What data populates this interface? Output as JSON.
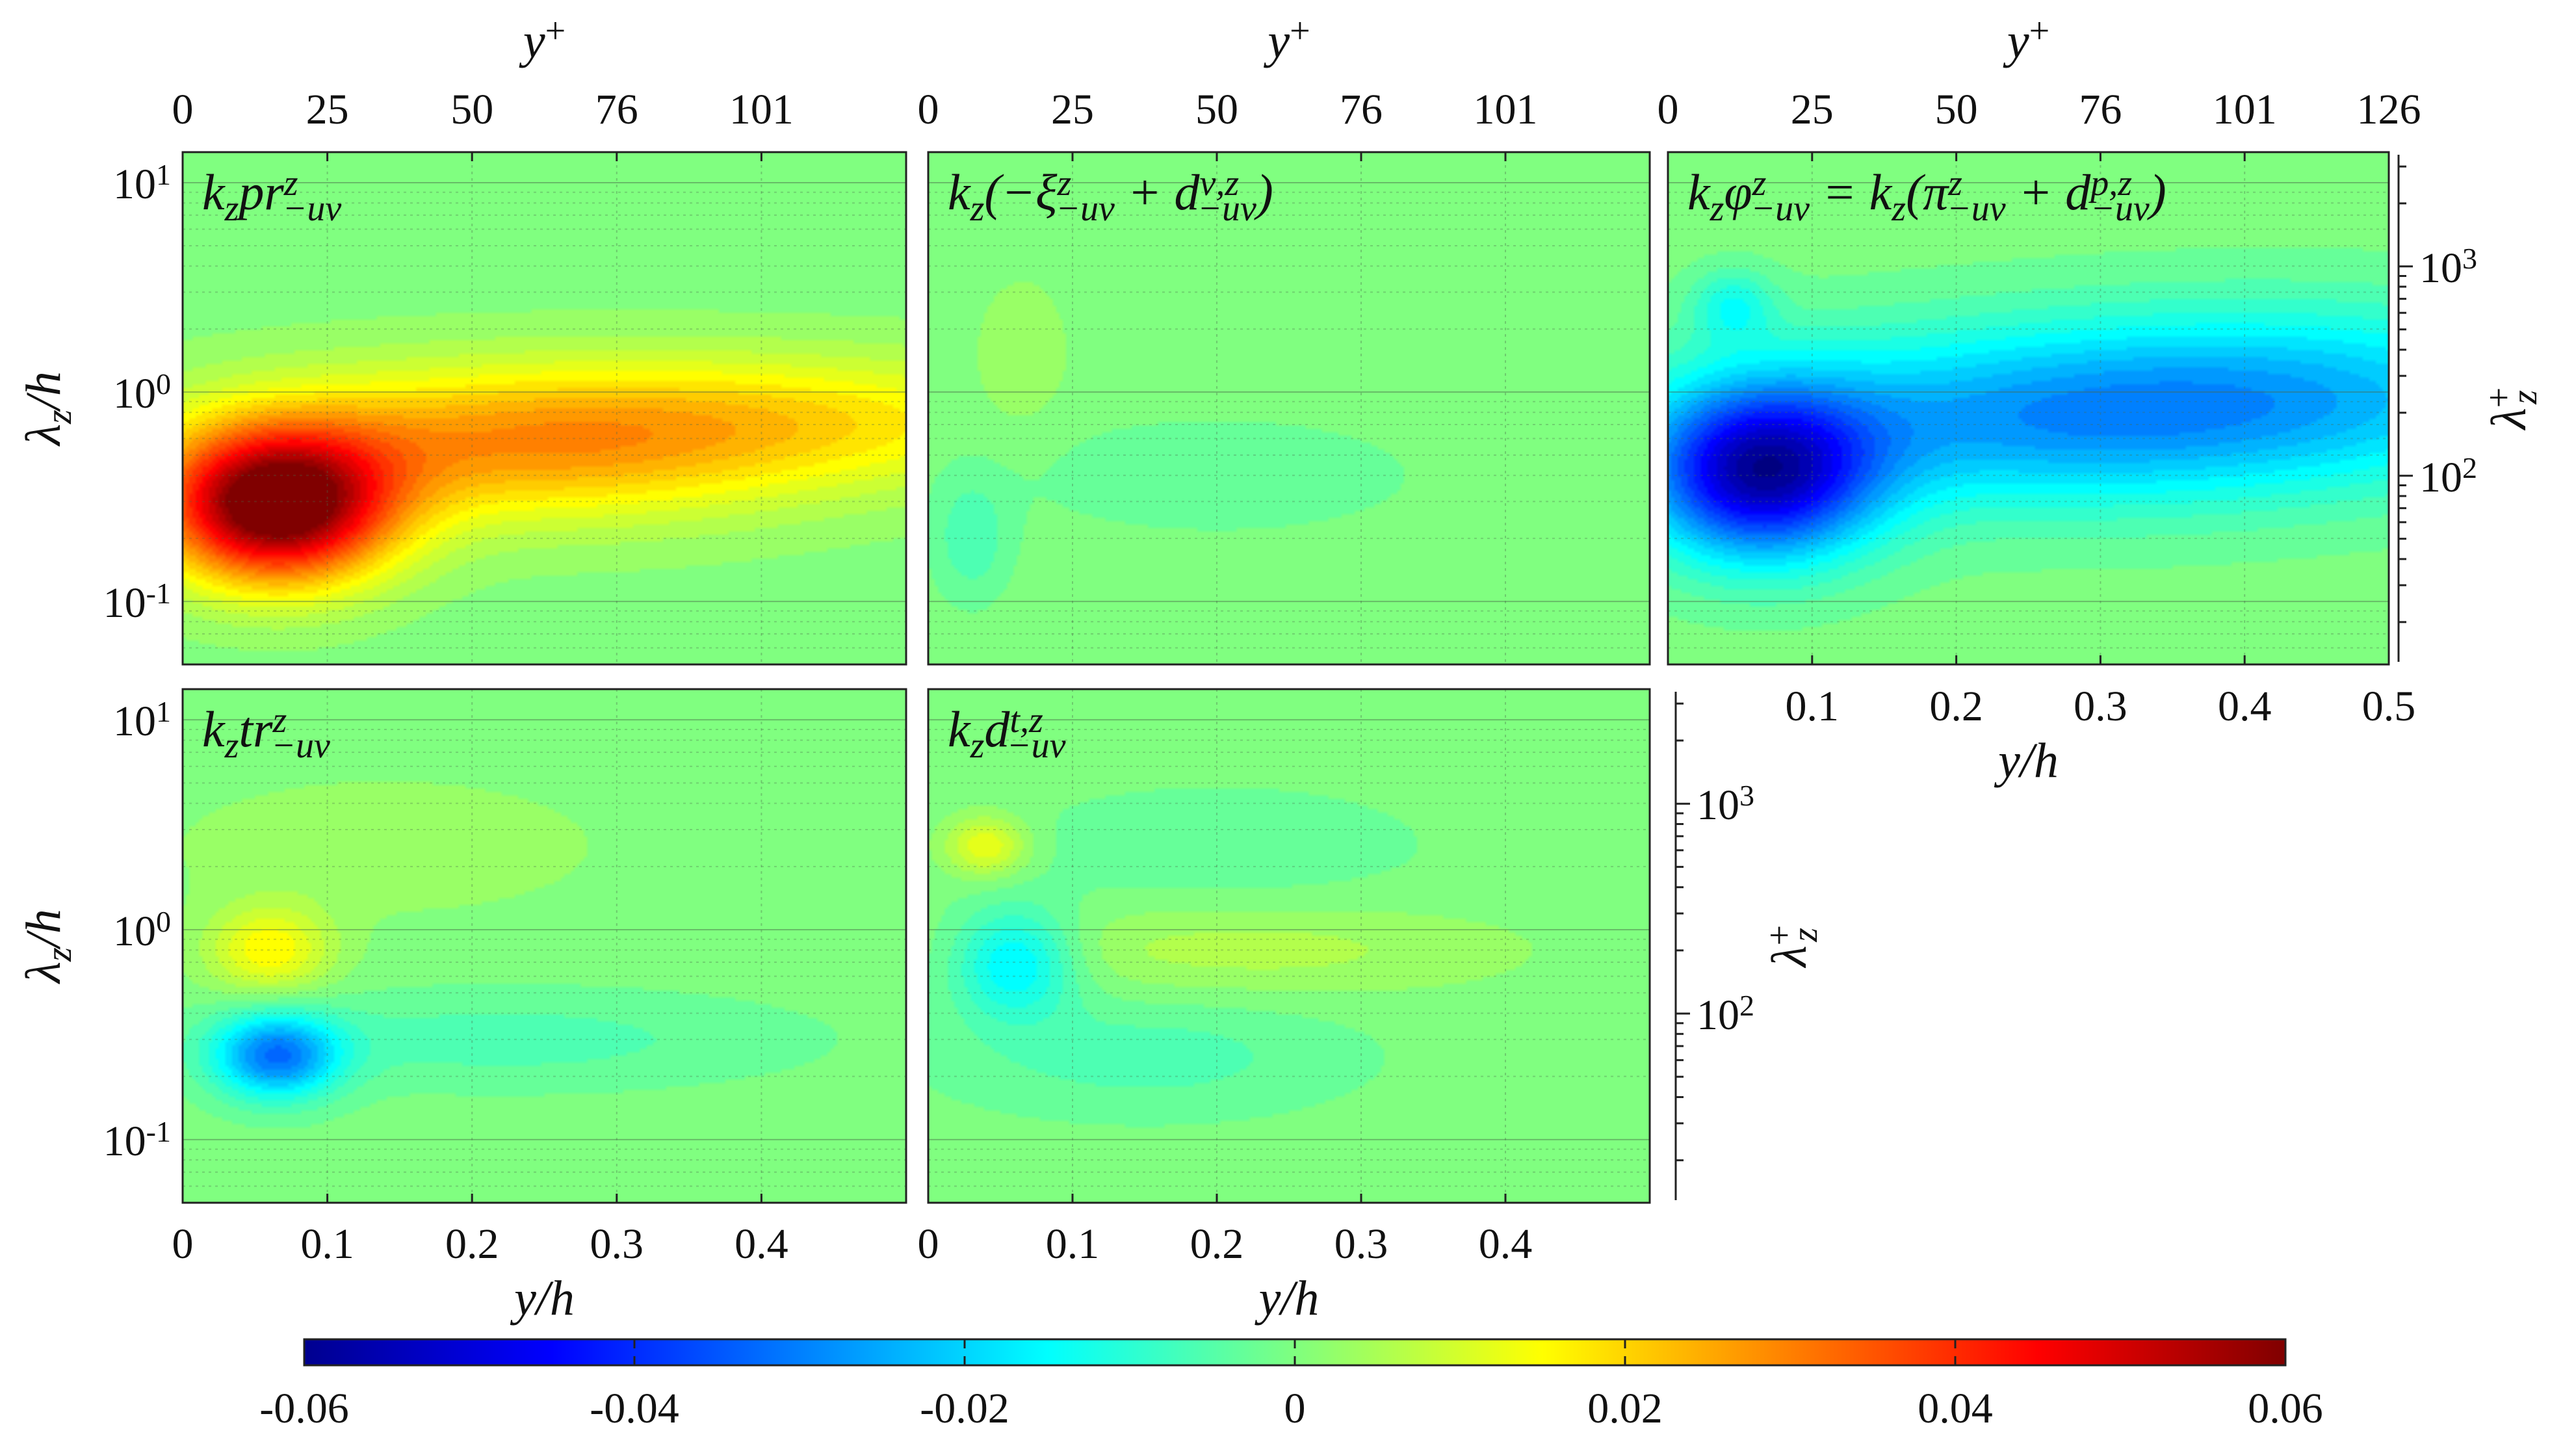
{
  "chart_data": {
    "type": "heatmap",
    "colorbar": {
      "colormap": "jet",
      "range": [
        -0.06,
        0.06
      ],
      "tick_values": [
        -0.06,
        -0.04,
        -0.02,
        0,
        0.02,
        0.04,
        0.06
      ],
      "tick_labels": [
        "-0.06",
        "-0.04",
        "-0.02",
        "0",
        "0.02",
        "0.04",
        "0.06"
      ]
    },
    "axes": {
      "x": {
        "label": "y/h",
        "range": [
          0,
          0.5
        ],
        "tick_values": [
          0,
          0.1,
          0.2,
          0.3,
          0.4
        ],
        "tick_labels": [
          "0",
          "0.1",
          "0.2",
          "0.3",
          "0.4"
        ],
        "tick_labels_full": [
          "0.1",
          "0.2",
          "0.3",
          "0.4",
          "0.5"
        ]
      },
      "x_top": {
        "label": "y+",
        "tick_labels": [
          "0",
          "25",
          "50",
          "76",
          "101"
        ],
        "tick_labels_full": [
          "0",
          "25",
          "50",
          "76",
          "101",
          "126"
        ]
      },
      "y_left": {
        "label": "λz/h",
        "scale": "log",
        "range": [
          0.05,
          14
        ],
        "tick_labels": [
          "10-1",
          "100",
          "101"
        ]
      },
      "y_right": {
        "label": "λz+",
        "scale": "log",
        "tick_labels": [
          "102",
          "103"
        ]
      },
      "grid": true
    },
    "panels": [
      {
        "id": "pr",
        "title": "kz pr z −uv",
        "blobs": [
          {
            "x": 0.065,
            "lam": 0.28,
            "sx": 0.055,
            "sy": 0.25,
            "amp": 0.064
          },
          {
            "x": 0.22,
            "lam": 0.55,
            "sx": 0.15,
            "sy": 0.26,
            "amp": 0.024
          },
          {
            "x": 0.44,
            "lam": 0.75,
            "sx": 0.16,
            "sy": 0.22,
            "amp": 0.014
          }
        ]
      },
      {
        "id": "visc",
        "title": "kz(−ξ z −uv + d ν,z −uv)",
        "blobs": [
          {
            "x": 0.03,
            "lam": 0.2,
            "sx": 0.018,
            "sy": 0.2,
            "amp": -0.007
          },
          {
            "x": 0.065,
            "lam": 1.5,
            "sx": 0.022,
            "sy": 0.25,
            "amp": 0.004
          },
          {
            "x": 0.2,
            "lam": 0.4,
            "sx": 0.1,
            "sy": 0.2,
            "amp": -0.0035
          }
        ]
      },
      {
        "id": "phi",
        "title": "kz φ z −uv = kz(π z −uv + d p,z −uv)",
        "blobs": [
          {
            "x": 0.065,
            "lam": 0.4,
            "sx": 0.055,
            "sy": 0.28,
            "amp": -0.05
          },
          {
            "x": 0.24,
            "lam": 0.72,
            "sx": 0.16,
            "sy": 0.3,
            "amp": -0.022
          },
          {
            "x": 0.45,
            "lam": 1.0,
            "sx": 0.15,
            "sy": 0.3,
            "amp": -0.018
          },
          {
            "x": 0.045,
            "lam": 2.6,
            "sx": 0.02,
            "sy": 0.12,
            "amp": -0.012
          }
        ]
      },
      {
        "id": "tr",
        "title": "kz tr z −uv",
        "blobs": [
          {
            "x": 0.065,
            "lam": 0.25,
            "sx": 0.03,
            "sy": 0.14,
            "amp": -0.03
          },
          {
            "x": 0.06,
            "lam": 0.8,
            "sx": 0.03,
            "sy": 0.15,
            "amp": 0.016
          },
          {
            "x": 0.22,
            "lam": 0.3,
            "sx": 0.14,
            "sy": 0.16,
            "amp": -0.006
          },
          {
            "x": 0.14,
            "lam": 2.5,
            "sx": 0.1,
            "sy": 0.22,
            "amp": 0.004
          }
        ]
      },
      {
        "id": "dt",
        "title": "kz d t,z −uv",
        "blobs": [
          {
            "x": 0.06,
            "lam": 0.7,
            "sx": 0.03,
            "sy": 0.18,
            "amp": -0.018
          },
          {
            "x": 0.04,
            "lam": 2.5,
            "sx": 0.02,
            "sy": 0.1,
            "amp": 0.014
          },
          {
            "x": 0.22,
            "lam": 0.8,
            "sx": 0.12,
            "sy": 0.15,
            "amp": 0.006
          },
          {
            "x": 0.15,
            "lam": 0.25,
            "sx": 0.1,
            "sy": 0.2,
            "amp": -0.006
          },
          {
            "x": 0.2,
            "lam": 2.5,
            "sx": 0.1,
            "sy": 0.2,
            "amp": -0.004
          }
        ]
      }
    ]
  }
}
